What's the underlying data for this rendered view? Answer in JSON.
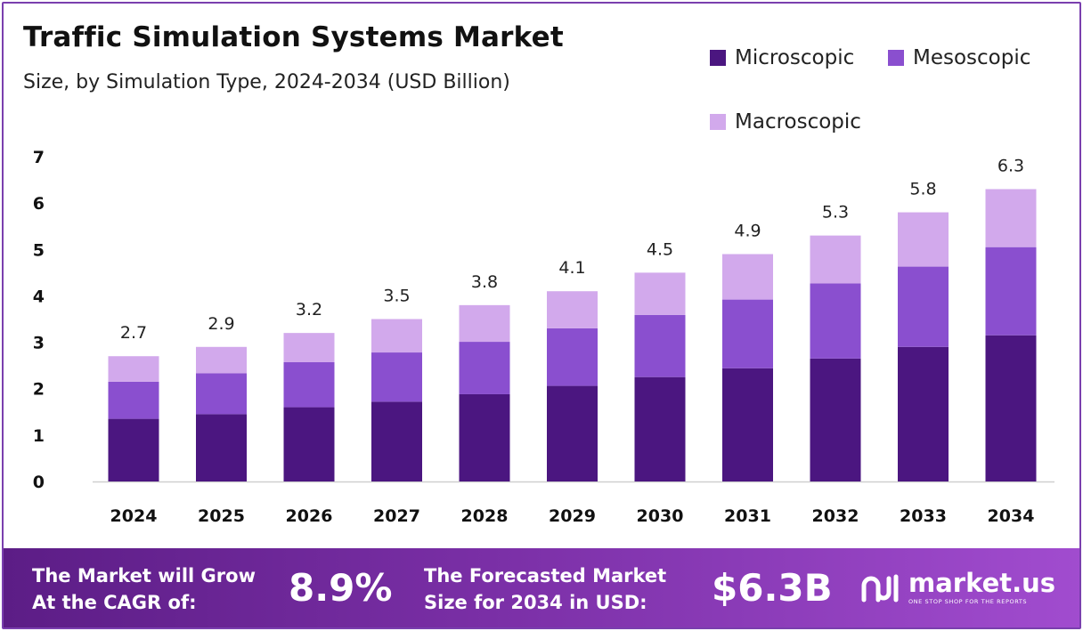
{
  "header": {
    "title": "Traffic Simulation Systems Market",
    "subtitle": "Size, by Simulation Type, 2024-2034 (USD Billion)"
  },
  "chart_data": {
    "type": "bar",
    "stacked": true,
    "categories": [
      "2024",
      "2025",
      "2026",
      "2027",
      "2028",
      "2029",
      "2030",
      "2031",
      "2032",
      "2033",
      "2034"
    ],
    "series": [
      {
        "name": "Microscopic",
        "color": "#4b1680",
        "values": [
          1.35,
          1.45,
          1.6,
          1.72,
          1.88,
          2.06,
          2.25,
          2.44,
          2.65,
          2.9,
          3.15
        ]
      },
      {
        "name": "Mesoscopic",
        "color": "#8a4fcf",
        "values": [
          0.8,
          0.88,
          0.97,
          1.06,
          1.13,
          1.24,
          1.34,
          1.48,
          1.62,
          1.73,
          1.9
        ]
      },
      {
        "name": "Macroscopic",
        "color": "#d2a9ec",
        "values": [
          0.55,
          0.57,
          0.63,
          0.72,
          0.79,
          0.8,
          0.91,
          0.98,
          1.03,
          1.17,
          1.25
        ]
      }
    ],
    "totals": [
      "2.7",
      "2.9",
      "3.2",
      "3.5",
      "3.8",
      "4.1",
      "4.5",
      "4.9",
      "5.3",
      "5.8",
      "6.3"
    ],
    "yticks": [
      "0",
      "1",
      "2",
      "3",
      "4",
      "5",
      "6",
      "7"
    ],
    "ylim": [
      0,
      7
    ],
    "legend_position": "top-right",
    "grid": false
  },
  "footer": {
    "cagr_line1": "The Market will Grow",
    "cagr_line2": "At the CAGR of:",
    "cagr_value": "8.9%",
    "forecast_line1": "The Forecasted Market",
    "forecast_line2": "Size for 2034 in USD:",
    "forecast_value": "$6.3B",
    "brand_name": "market.us",
    "brand_tagline": "ONE STOP SHOP FOR THE REPORTS",
    "brand_icon": "market-us-logo-icon"
  }
}
